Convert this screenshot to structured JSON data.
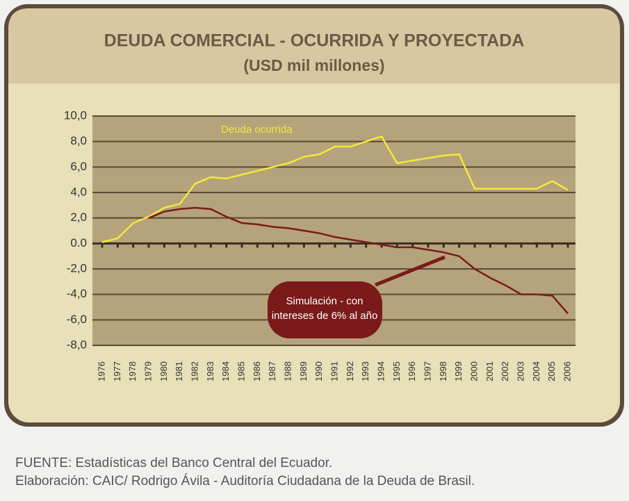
{
  "chart_data": {
    "type": "line",
    "title": "DEUDA COMERCIAL - OCURRIDA Y PROYECTADA",
    "subtitle": "(USD mil millones)",
    "categories": [
      "1976",
      "1977",
      "1978",
      "1979",
      "1980",
      "1981",
      "1982",
      "1983",
      "1984",
      "1985",
      "1986",
      "1987",
      "1988",
      "1989",
      "1990",
      "1991",
      "1992",
      "1993",
      "1994",
      "1995",
      "1996",
      "1997",
      "1998",
      "1999",
      "2000",
      "2001",
      "2002",
      "2003",
      "2004",
      "2005",
      "2006"
    ],
    "series": [
      {
        "name": "Deuda ocurrida",
        "color": "#f5e83a",
        "values": [
          0.1,
          0.4,
          1.6,
          2.1,
          2.8,
          3.1,
          4.7,
          5.2,
          5.1,
          5.4,
          5.7,
          6.0,
          6.3,
          6.8,
          7.0,
          7.6,
          7.6,
          8.0,
          8.4,
          6.3,
          6.5,
          6.7,
          6.9,
          7.0,
          4.3,
          4.3,
          4.3,
          4.3,
          4.3,
          4.9,
          4.2
        ]
      },
      {
        "name": "Simulación - con intereses de 6% al año",
        "color": "#7b1a1a",
        "values": [
          null,
          null,
          null,
          2.0,
          2.5,
          2.7,
          2.8,
          2.7,
          2.1,
          1.6,
          1.5,
          1.3,
          1.2,
          1.0,
          0.8,
          0.5,
          0.3,
          0.1,
          -0.1,
          -0.3,
          -0.3,
          -0.5,
          -0.7,
          -1.0,
          -2.0,
          -2.7,
          -3.3,
          -4.0,
          -4.0,
          -4.1,
          -5.5
        ]
      }
    ],
    "annotations": {
      "series_label": "Deuda ocurrida",
      "callout": [
        "Simulación - con",
        "intereses de 6% al año"
      ]
    },
    "ylim": [
      -8,
      10
    ],
    "yticks": [
      {
        "value": -8,
        "label": "-8,0"
      },
      {
        "value": -6,
        "label": "-6,0"
      },
      {
        "value": -4,
        "label": "-4,0"
      },
      {
        "value": -2,
        "label": "-2,0"
      },
      {
        "value": 0,
        "label": "0.0"
      },
      {
        "value": 2,
        "label": "2,0"
      },
      {
        "value": 4,
        "label": "4,0"
      },
      {
        "value": 6,
        "label": "6,0"
      },
      {
        "value": 8,
        "label": "8,0"
      },
      {
        "value": 10,
        "label": "10,0"
      }
    ],
    "grid": true,
    "notes": [
      "FUENTE: Estadísticas del Banco Central del Ecuador.",
      "Elaboración: CAIC/ Rodrigo Ávila - Auditoría Ciudadana de la Deuda de Brasil."
    ]
  }
}
